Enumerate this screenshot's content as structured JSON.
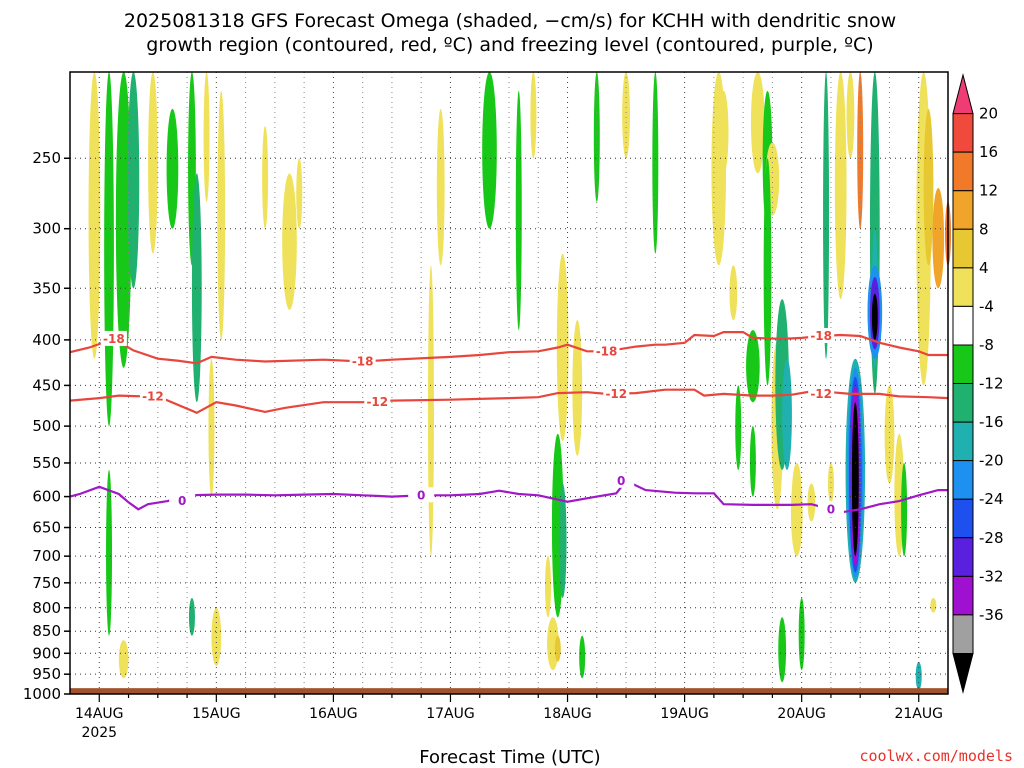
{
  "title_line1": "2025081318 GFS Forecast Omega (shaded, −cm/s) for KCHH with dendritic snow",
  "title_line2": "growth region (contoured, red, ºC) and freezing level (contoured, purple, ºC)",
  "credit": "coolwx.com/models",
  "credit_color": "#e8312b",
  "chart_data": {
    "type": "heatmap",
    "title": "2025081318 GFS Forecast Omega (shaded, −cm/s) for KCHH with dendritic snow growth region (contoured, red, ºC) and freezing level (contoured, purple, ºC)",
    "xlabel": "Forecast Time (UTC)",
    "ylabel": "",
    "x_ticks": [
      {
        "label": "14AUG",
        "label2": "2025",
        "hour": 6
      },
      {
        "label": "15AUG",
        "hour": 30
      },
      {
        "label": "16AUG",
        "hour": 54
      },
      {
        "label": "17AUG",
        "hour": 78
      },
      {
        "label": "18AUG",
        "hour": 102
      },
      {
        "label": "19AUG",
        "hour": 126
      },
      {
        "label": "20AUG",
        "hour": 150
      },
      {
        "label": "21AUG",
        "hour": 174
      }
    ],
    "xlim_hours": [
      0,
      180
    ],
    "y_ticks": [
      250,
      300,
      350,
      400,
      450,
      500,
      550,
      600,
      650,
      700,
      750,
      800,
      850,
      900,
      950,
      1000
    ],
    "ylim_hpa": [
      200,
      1000
    ],
    "y_scale": "log-pressure",
    "grid": true,
    "surface_color": "#a0522d",
    "colorbar": {
      "labels": [
        20,
        16,
        12,
        8,
        4,
        -4,
        -8,
        -12,
        -16,
        -20,
        -24,
        -28,
        -32,
        -36
      ],
      "colors": [
        "#f03c74",
        "#f04a3c",
        "#f07a2a",
        "#f0a52a",
        "#e8c832",
        "#f0e15a",
        "#ffffff",
        "#18c818",
        "#20b070",
        "#20b0b0",
        "#1e90f0",
        "#1e50f0",
        "#5a20e0",
        "#a010d0",
        "#a0a0a0",
        "#000000"
      ]
    },
    "contours": [
      {
        "name": "-18",
        "color": "#e8463c",
        "points": [
          [
            0,
            413
          ],
          [
            4,
            408
          ],
          [
            9,
            399
          ],
          [
            13,
            411
          ],
          [
            18,
            420
          ],
          [
            22,
            422
          ],
          [
            26,
            425
          ],
          [
            29,
            418
          ],
          [
            34,
            421
          ],
          [
            40,
            423
          ],
          [
            52,
            421
          ],
          [
            60,
            423
          ],
          [
            66,
            421
          ],
          [
            78,
            418
          ],
          [
            84,
            416
          ],
          [
            90,
            413
          ],
          [
            96,
            412
          ],
          [
            100,
            408
          ],
          [
            102,
            405
          ],
          [
            106,
            412
          ],
          [
            110,
            412
          ],
          [
            116,
            407
          ],
          [
            120,
            405
          ],
          [
            122,
            405
          ],
          [
            126,
            403
          ],
          [
            128,
            395
          ],
          [
            132,
            396
          ],
          [
            134,
            392
          ],
          [
            138,
            392
          ],
          [
            140,
            398
          ],
          [
            146,
            399
          ],
          [
            150,
            398
          ],
          [
            154,
            396
          ],
          [
            158,
            395
          ],
          [
            162,
            396
          ],
          [
            166,
            403
          ],
          [
            170,
            408
          ],
          [
            174,
            412
          ],
          [
            176,
            416
          ],
          [
            180,
            416
          ]
        ],
        "labels": [
          [
            9,
            399
          ],
          [
            60,
            423
          ],
          [
            110,
            412
          ],
          [
            154,
            396
          ]
        ]
      },
      {
        "name": "-12",
        "color": "#e8463c",
        "points": [
          [
            0,
            468
          ],
          [
            6,
            465
          ],
          [
            10,
            462
          ],
          [
            15,
            463
          ],
          [
            18,
            463
          ],
          [
            26,
            483
          ],
          [
            30,
            470
          ],
          [
            34,
            474
          ],
          [
            40,
            482
          ],
          [
            44,
            477
          ],
          [
            52,
            470
          ],
          [
            60,
            470
          ],
          [
            66,
            468
          ],
          [
            78,
            467
          ],
          [
            84,
            466
          ],
          [
            90,
            465
          ],
          [
            96,
            464
          ],
          [
            100,
            459
          ],
          [
            106,
            458
          ],
          [
            110,
            460
          ],
          [
            116,
            459
          ],
          [
            122,
            455
          ],
          [
            126,
            455
          ],
          [
            128,
            455
          ],
          [
            130,
            462
          ],
          [
            134,
            460
          ],
          [
            140,
            462
          ],
          [
            144,
            462
          ],
          [
            148,
            461
          ],
          [
            152,
            457
          ],
          [
            156,
            458
          ],
          [
            160,
            460
          ],
          [
            166,
            460
          ],
          [
            170,
            463
          ],
          [
            176,
            464
          ],
          [
            180,
            465
          ]
        ],
        "labels": [
          [
            17,
            463
          ],
          [
            63,
            470
          ],
          [
            112,
            460
          ],
          [
            154,
            460
          ]
        ]
      },
      {
        "name": "0",
        "color": "#a018c8",
        "points": [
          [
            0,
            600
          ],
          [
            2,
            596
          ],
          [
            6,
            585
          ],
          [
            10,
            596
          ],
          [
            12,
            609
          ],
          [
            14,
            620
          ],
          [
            16,
            612
          ],
          [
            20,
            607
          ],
          [
            24,
            598
          ],
          [
            30,
            597
          ],
          [
            36,
            597
          ],
          [
            42,
            598
          ],
          [
            48,
            597
          ],
          [
            54,
            596
          ],
          [
            60,
            598
          ],
          [
            66,
            600
          ],
          [
            72,
            598
          ],
          [
            78,
            598
          ],
          [
            84,
            596
          ],
          [
            88,
            591
          ],
          [
            92,
            596
          ],
          [
            96,
            598
          ],
          [
            102,
            608
          ],
          [
            108,
            600
          ],
          [
            112,
            595
          ],
          [
            114,
            576
          ],
          [
            118,
            590
          ],
          [
            124,
            594
          ],
          [
            128,
            595
          ],
          [
            132,
            595
          ],
          [
            134,
            612
          ],
          [
            140,
            613
          ],
          [
            148,
            613
          ],
          [
            152,
            612
          ],
          [
            156,
            620
          ],
          [
            158,
            625
          ],
          [
            162,
            620
          ],
          [
            166,
            612
          ],
          [
            170,
            607
          ],
          [
            174,
            598
          ],
          [
            178,
            590
          ],
          [
            180,
            590
          ]
        ],
        "labels": [
          [
            23,
            607
          ],
          [
            72,
            598
          ],
          [
            113,
            576
          ],
          [
            156,
            620
          ]
        ]
      }
    ]
  }
}
